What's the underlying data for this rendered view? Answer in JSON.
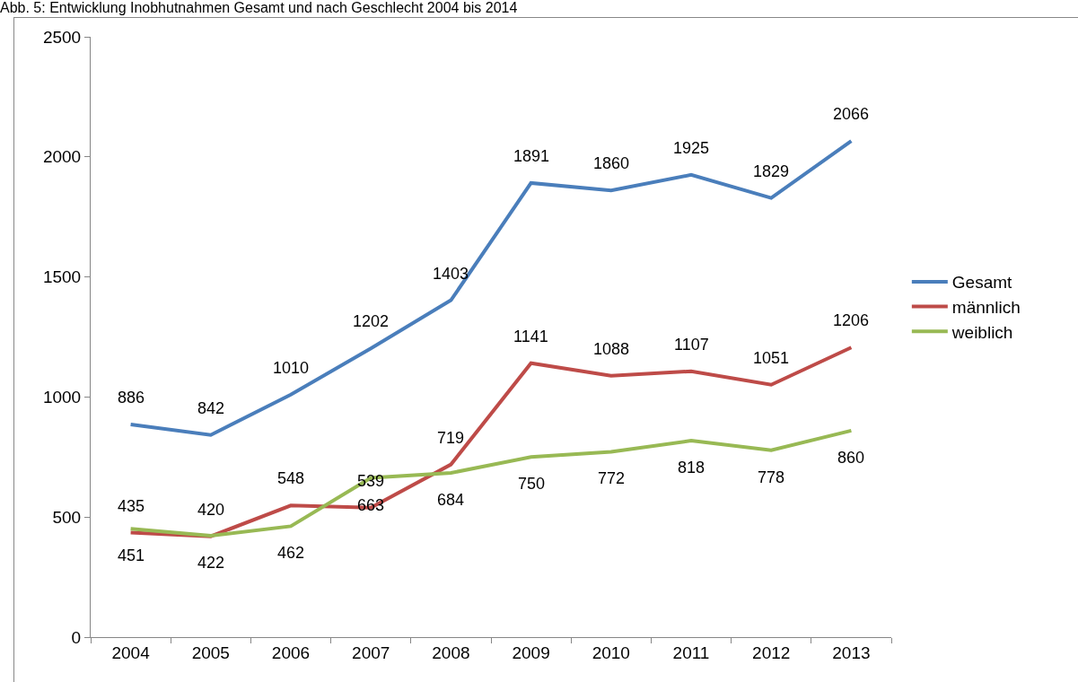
{
  "chart_data": {
    "type": "line",
    "title": "Abb. 5: Entwicklung Inobhutnahmen Gesamt und nach Geschlecht 2004 bis 2014",
    "categories": [
      "2004",
      "2005",
      "2006",
      "2007",
      "2008",
      "2009",
      "2010",
      "2011",
      "2012",
      "2013"
    ],
    "series": [
      {
        "name": "Gesamt",
        "color": "#4a7ebb",
        "values": [
          886,
          842,
          1010,
          1202,
          1403,
          1891,
          1860,
          1925,
          1829,
          2066
        ]
      },
      {
        "name": "männlich",
        "color": "#be4b48",
        "values": [
          435,
          420,
          548,
          539,
          719,
          1141,
          1088,
          1107,
          1051,
          1206
        ]
      },
      {
        "name": "weiblich",
        "color": "#98b954",
        "values": [
          451,
          422,
          462,
          663,
          684,
          750,
          772,
          818,
          778,
          860
        ]
      }
    ],
    "ylim": [
      0,
      2500
    ],
    "yticks": [
      0,
      500,
      1000,
      1500,
      2000,
      2500
    ],
    "grid": false,
    "legend": "right",
    "marker": "none",
    "line_style": "solid",
    "data_labels": true
  }
}
